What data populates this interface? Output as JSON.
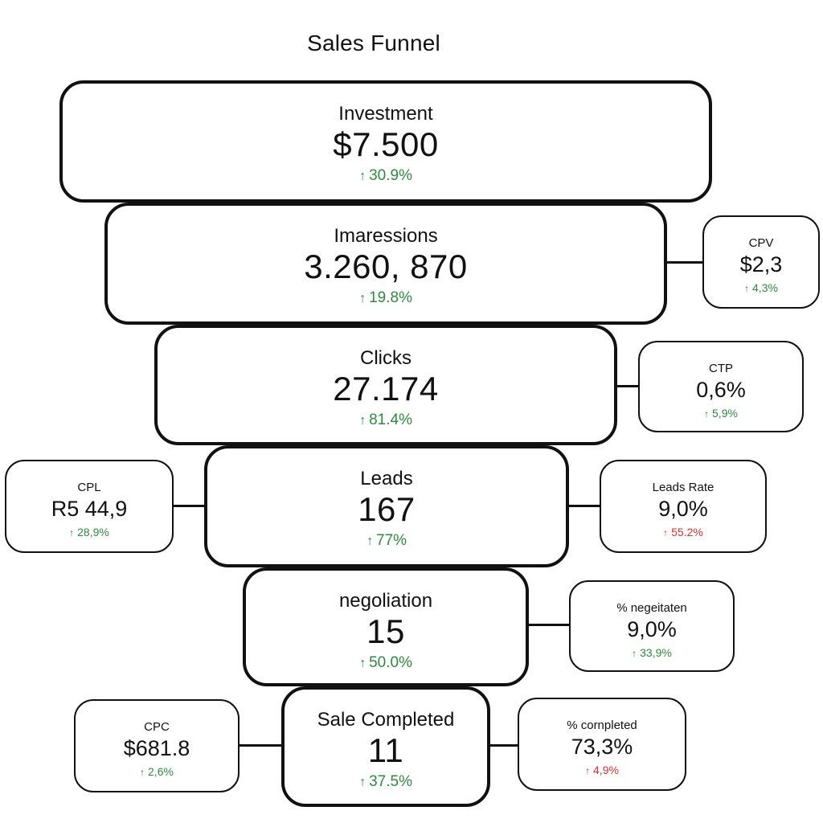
{
  "title": "Sales Funnel",
  "colors": {
    "positive": "#2e8b3e",
    "negative": "#e23030",
    "border": "#111111"
  },
  "arrow_icon": "arrow-up-icon",
  "stages": [
    {
      "label": "Investment",
      "value": "$7.500",
      "change": "30.9%",
      "trend": "up"
    },
    {
      "label": "Imaressions",
      "value": "3.260, 870",
      "change": "19.8%",
      "trend": "up"
    },
    {
      "label": "Clicks",
      "value": "27.174",
      "change": "81.4%",
      "trend": "up"
    },
    {
      "label": "Leads",
      "value": "167",
      "change": "77%",
      "trend": "up"
    },
    {
      "label": "negoliation",
      "value": "15",
      "change": "50.0%",
      "trend": "up"
    },
    {
      "label": "Sale Completed",
      "value": "11",
      "change": "37.5%",
      "trend": "up"
    }
  ],
  "metrics": [
    {
      "label": "CPV",
      "value": "$2,3",
      "change": "4,3%",
      "trend": "positive"
    },
    {
      "label": "CTP",
      "value": "0,6%",
      "change": "5,9%",
      "trend": "positive"
    },
    {
      "label": "CPL",
      "value": "R5 44,9",
      "change": "28,9%",
      "trend": "positive"
    },
    {
      "label": "Leads Rate",
      "value": "9,0%",
      "change": "55.2%",
      "trend": "negative"
    },
    {
      "label": "% negeitaten",
      "value": "9,0%",
      "change": "33,9%",
      "trend": "positive"
    },
    {
      "label": "CPC",
      "value": "$681.8",
      "change": "2,6%",
      "trend": "positive"
    },
    {
      "label": "% cornpleted",
      "value": "73,3%",
      "change": "4,9%",
      "trend": "negative"
    }
  ]
}
